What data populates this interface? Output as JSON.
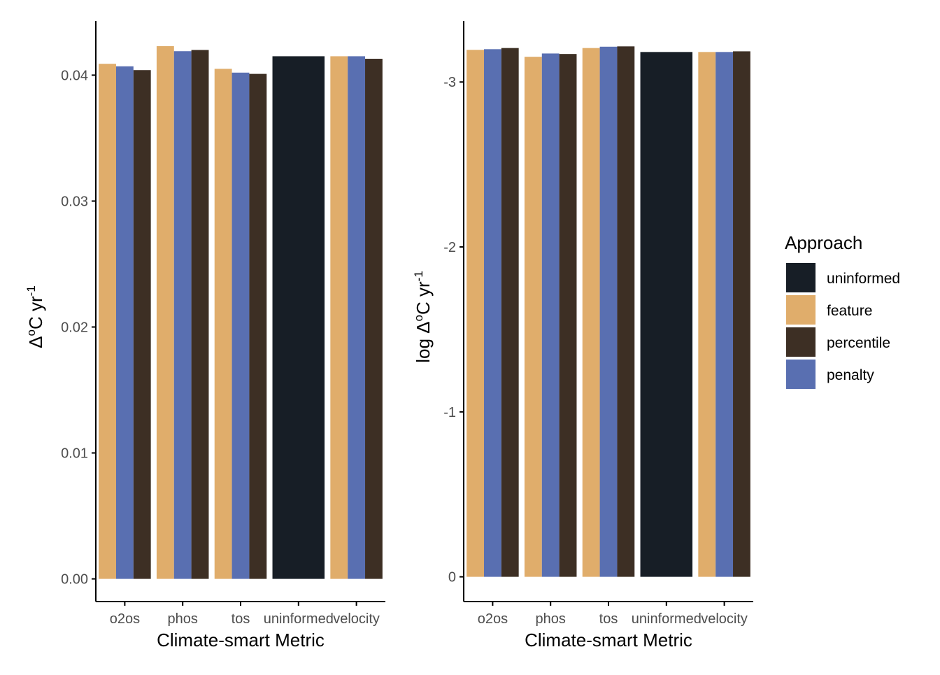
{
  "chart_data": [
    {
      "type": "bar",
      "xlabel": "Climate-smart Metric",
      "ylabel_parts": [
        "Δ",
        "o",
        "C yr",
        "-1"
      ],
      "ylim": [
        -0.0018,
        0.0443
      ],
      "yticks": [
        0.0,
        0.01,
        0.02,
        0.03,
        0.04
      ],
      "ytick_labels": [
        "0.00",
        "0.01",
        "0.02",
        "0.03",
        "0.04"
      ],
      "categories": [
        "o2os",
        "phos",
        "tos",
        "uninformed",
        "velocity"
      ],
      "series": [
        {
          "name": "feature",
          "values": [
            0.0409,
            0.0423,
            0.0405,
            null,
            0.0415
          ]
        },
        {
          "name": "penalty",
          "values": [
            0.0407,
            0.0419,
            0.0402,
            null,
            0.0415
          ]
        },
        {
          "name": "percentile",
          "values": [
            0.0404,
            0.042,
            0.0401,
            null,
            0.0413
          ]
        },
        {
          "name": "uninformed",
          "values": [
            null,
            null,
            null,
            0.0415,
            null
          ]
        }
      ]
    },
    {
      "type": "bar",
      "xlabel": "Climate-smart Metric",
      "ylabel_parts": [
        "log Δ",
        "o",
        "C yr",
        "-1"
      ],
      "ylim": [
        0.15,
        -3.37
      ],
      "yticks": [
        0,
        -1,
        -2,
        -3
      ],
      "ytick_labels": [
        "0",
        "-1",
        "-2",
        "-3"
      ],
      "categories": [
        "o2os",
        "phos",
        "tos",
        "uninformed",
        "velocity"
      ],
      "series": [
        {
          "name": "feature",
          "values": [
            -3.195,
            -3.153,
            -3.206,
            null,
            -3.182
          ]
        },
        {
          "name": "penalty",
          "values": [
            -3.199,
            -3.173,
            -3.214,
            null,
            -3.182
          ]
        },
        {
          "name": "percentile",
          "values": [
            -3.206,
            -3.17,
            -3.216,
            null,
            -3.186
          ]
        },
        {
          "name": "uninformed",
          "values": [
            null,
            null,
            null,
            -3.182,
            null
          ]
        }
      ]
    }
  ],
  "legend": {
    "title": "Approach",
    "items": [
      {
        "label": "uninformed",
        "color": "#171e26"
      },
      {
        "label": "feature",
        "color": "#e0ad6b"
      },
      {
        "label": "percentile",
        "color": "#3d2f24"
      },
      {
        "label": "penalty",
        "color": "#596fb1"
      }
    ]
  },
  "colors": {
    "feature": "#e0ad6b",
    "penalty": "#596fb1",
    "percentile": "#3d2f24",
    "uninformed": "#171e26",
    "axis": "#000000",
    "tick_text": "#4d4d4d"
  }
}
